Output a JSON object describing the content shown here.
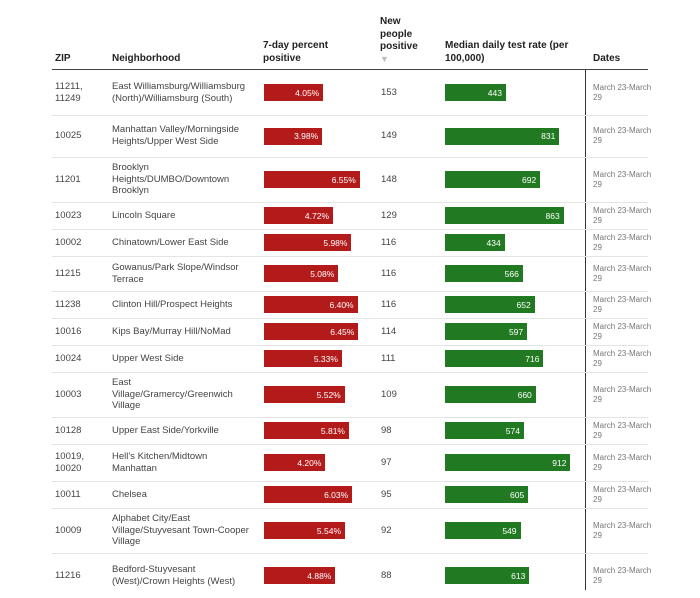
{
  "chart_data": {
    "type": "table",
    "columns": [
      {
        "key": "zip",
        "label": "ZIP"
      },
      {
        "key": "neighborhood",
        "label": "Neighborhood"
      },
      {
        "key": "pct_positive",
        "label": "7-day percent positive"
      },
      {
        "key": "new_positive",
        "label": "New people positive"
      },
      {
        "key": "test_rate",
        "label": "Median daily test rate (per 100,000)"
      },
      {
        "key": "dates",
        "label": "Dates"
      }
    ],
    "sort_icon": "sort-down-icon",
    "bar_colors": {
      "pct_positive": "#b31b1b",
      "test_rate": "#217a21"
    },
    "pct_scale_max": 8.0,
    "rate_scale_max": 1050,
    "rows": [
      {
        "zip": "11211, 11249",
        "neighborhood": "East Williamsburg/Williamsburg (North)/Williamsburg (South)",
        "pct_positive": 4.05,
        "pct_label": "4.05%",
        "new_positive": "153",
        "test_rate": 443,
        "rate_label": "443",
        "dates": "March 23-March 29"
      },
      {
        "zip": "10025",
        "neighborhood": "Manhattan Valley/Morningside Heights/Upper West Side",
        "pct_positive": 3.98,
        "pct_label": "3.98%",
        "new_positive": "149",
        "test_rate": 831,
        "rate_label": "831",
        "dates": "March 23-March 29"
      },
      {
        "zip": "11201",
        "neighborhood": "Brooklyn Heights/DUMBO/Downtown Brooklyn",
        "pct_positive": 6.55,
        "pct_label": "6.55%",
        "new_positive": "148",
        "test_rate": 692,
        "rate_label": "692",
        "dates": "March 23-March 29"
      },
      {
        "zip": "10023",
        "neighborhood": "Lincoln Square",
        "pct_positive": 4.72,
        "pct_label": "4.72%",
        "new_positive": "129",
        "test_rate": 863,
        "rate_label": "863",
        "dates": "March 23-March 29"
      },
      {
        "zip": "10002",
        "neighborhood": "Chinatown/Lower East Side",
        "pct_positive": 5.98,
        "pct_label": "5.98%",
        "new_positive": "116",
        "test_rate": 434,
        "rate_label": "434",
        "dates": "March 23-March 29"
      },
      {
        "zip": "11215",
        "neighborhood": "Gowanus/Park Slope/Windsor Terrace",
        "pct_positive": 5.08,
        "pct_label": "5.08%",
        "new_positive": "116",
        "test_rate": 566,
        "rate_label": "566",
        "dates": "March 23-March 29"
      },
      {
        "zip": "11238",
        "neighborhood": "Clinton Hill/Prospect Heights",
        "pct_positive": 6.4,
        "pct_label": "6.40%",
        "new_positive": "116",
        "test_rate": 652,
        "rate_label": "652",
        "dates": "March 23-March 29"
      },
      {
        "zip": "10016",
        "neighborhood": "Kips Bay/Murray Hill/NoMad",
        "pct_positive": 6.45,
        "pct_label": "6.45%",
        "new_positive": "114",
        "test_rate": 597,
        "rate_label": "597",
        "dates": "March 23-March 29"
      },
      {
        "zip": "10024",
        "neighborhood": "Upper West Side",
        "pct_positive": 5.33,
        "pct_label": "5.33%",
        "new_positive": "111",
        "test_rate": 716,
        "rate_label": "716",
        "dates": "March 23-March 29"
      },
      {
        "zip": "10003",
        "neighborhood": "East Village/Gramercy/Greenwich Village",
        "pct_positive": 5.52,
        "pct_label": "5.52%",
        "new_positive": "109",
        "test_rate": 660,
        "rate_label": "660",
        "dates": "March 23-March 29"
      },
      {
        "zip": "10128",
        "neighborhood": "Upper East Side/Yorkville",
        "pct_positive": 5.81,
        "pct_label": "5.81%",
        "new_positive": "98",
        "test_rate": 574,
        "rate_label": "574",
        "dates": "March 23-March 29"
      },
      {
        "zip": "10019, 10020",
        "neighborhood": "Hell's Kitchen/Midtown Manhattan",
        "pct_positive": 4.2,
        "pct_label": "4.20%",
        "new_positive": "97",
        "test_rate": 912,
        "rate_label": "912",
        "dates": "March 23-March 29"
      },
      {
        "zip": "10011",
        "neighborhood": "Chelsea",
        "pct_positive": 6.03,
        "pct_label": "6.03%",
        "new_positive": "95",
        "test_rate": 605,
        "rate_label": "605",
        "dates": "March 23-March 29"
      },
      {
        "zip": "10009",
        "neighborhood": "Alphabet City/East Village/Stuyvesant Town-Cooper Village",
        "pct_positive": 5.54,
        "pct_label": "5.54%",
        "new_positive": "92",
        "test_rate": 549,
        "rate_label": "549",
        "dates": "March 23-March 29"
      },
      {
        "zip": "11216",
        "neighborhood": "Bedford-Stuyvesant (West)/Crown Heights (West)",
        "pct_positive": 4.88,
        "pct_label": "4.88%",
        "new_positive": "88",
        "test_rate": 613,
        "rate_label": "613",
        "dates": "March 23-March 29"
      }
    ]
  }
}
